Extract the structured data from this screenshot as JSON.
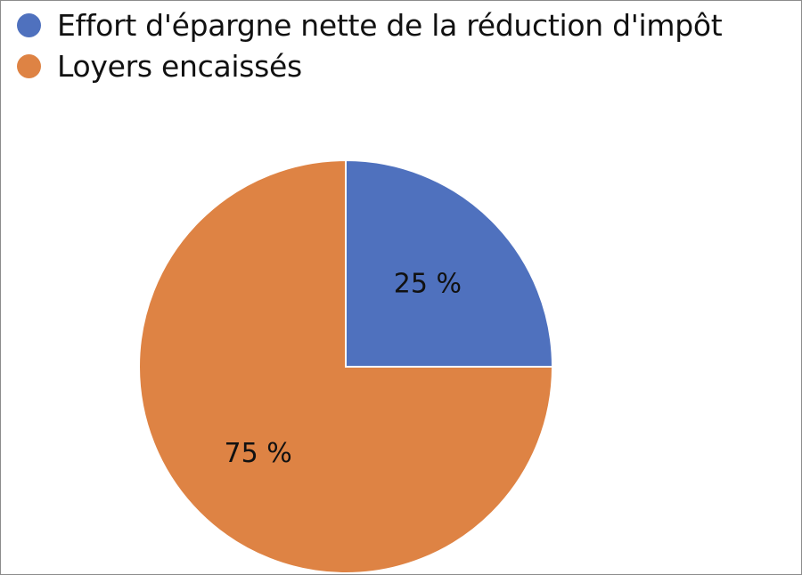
{
  "chart_data": {
    "type": "pie",
    "categories": [
      "Effort d'épargne nette de la réduction d'impôt",
      "Loyers encaissés"
    ],
    "values": [
      25,
      75
    ],
    "data_labels": [
      "25 %",
      "75 %"
    ],
    "colors": [
      "#4f71be",
      "#de8344"
    ],
    "legend_placement": "top-left",
    "title": ""
  }
}
